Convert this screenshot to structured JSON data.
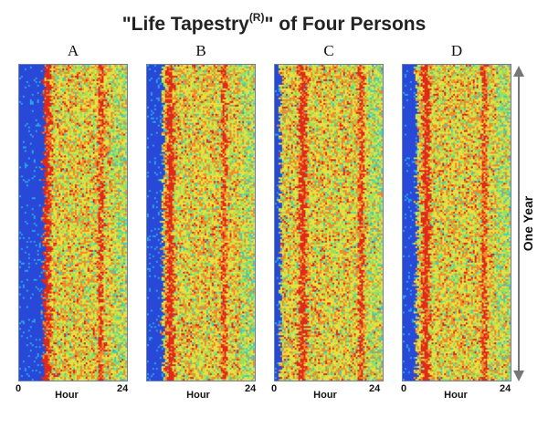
{
  "chart_data": {
    "type": "heatmap",
    "title": "\"Life Tapestry(R)\" of Four Persons",
    "title_main": "\"Life Tapestry",
    "title_sup": "(R)",
    "title_end": "\" of Four Persons",
    "panels": [
      {
        "label": "A",
        "dark_start_fraction": 0.22,
        "wake_hours": [
          6,
          18
        ]
      },
      {
        "label": "B",
        "dark_start_fraction": 0.14,
        "wake_hours": [
          5,
          17
        ]
      },
      {
        "label": "C",
        "dark_start_fraction": 0.04,
        "wake_hours": [
          6,
          19
        ]
      },
      {
        "label": "D",
        "dark_start_fraction": 0.12,
        "wake_hours": [
          5,
          18
        ]
      }
    ],
    "x_axis": {
      "label": "Hour",
      "ticks": [
        "0",
        "24"
      ],
      "range": [
        0,
        24
      ]
    },
    "y_axis": {
      "label": "One Year",
      "direction": "both-ways arrow"
    },
    "colorscale": [
      "#2848d8",
      "#2aa0e8",
      "#3fd0c0",
      "#9be05a",
      "#e8e040",
      "#f08a2a",
      "#e02a1a"
    ],
    "grid": false,
    "legend": "none"
  }
}
